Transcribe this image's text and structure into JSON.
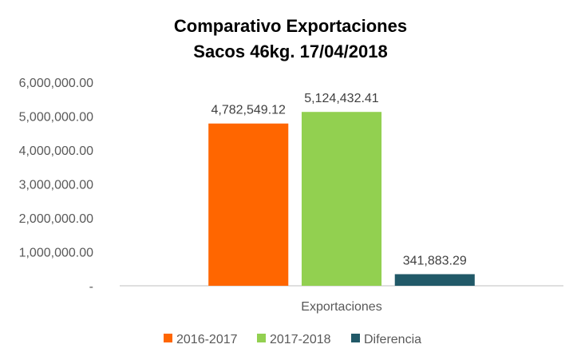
{
  "chart_data": {
    "type": "bar",
    "title_lines": [
      "Comparativo Exportaciones",
      "Sacos 46kg. 17/04/2018"
    ],
    "categories": [
      "Exportaciones"
    ],
    "series": [
      {
        "name": "2016-2017",
        "values": [
          4782549.12
        ],
        "label": "4,782,549.12",
        "color": "#FF6600"
      },
      {
        "name": "2017-2018",
        "values": [
          5124432.41
        ],
        "label": "5,124,432.41",
        "color": "#92D050"
      },
      {
        "name": "Diferencia",
        "values": [
          341883.29
        ],
        "label": "341,883.29",
        "color": "#215968"
      }
    ],
    "ylim": [
      0,
      6000000
    ],
    "yticks": [
      0,
      1000000,
      2000000,
      3000000,
      4000000,
      5000000,
      6000000
    ],
    "ytick_labels": [
      "-",
      "1,000,000.00",
      "2,000,000.00",
      "3,000,000.00",
      "4,000,000.00",
      "5,000,000.00",
      "6,000,000.00"
    ],
    "grid": false,
    "legend_position": "bottom"
  }
}
